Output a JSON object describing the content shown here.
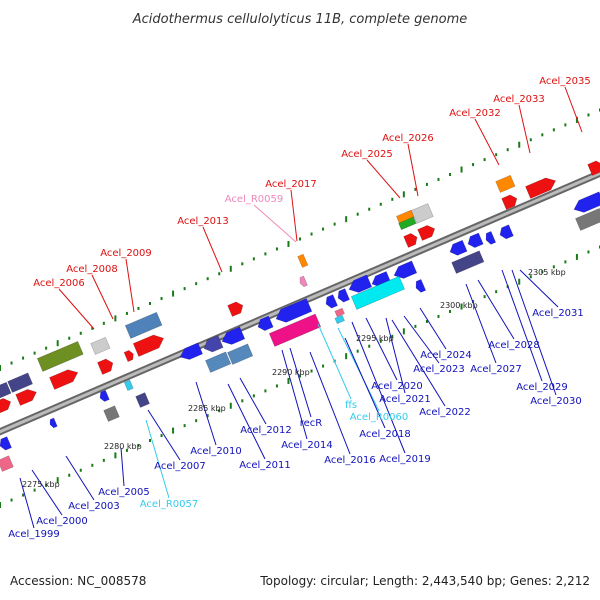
{
  "title": "Acidothermus cellulolyticus 11B, complete genome",
  "footer": {
    "accession": "Accession: NC_008578",
    "topology": "Topology: circular; Length: 2,443,540 bp; Genes: 2,212"
  },
  "colors": {
    "above_label": "#dd1111",
    "below_label": "#1111bb",
    "rna_label": "#33ccee",
    "pink_label": "#ee88bb",
    "backbone": "#888888"
  },
  "ticks": [
    "2275 kbp",
    "2280 kbp",
    "2285 kbp",
    "2290 kbp",
    "2295 kbp",
    "2300 kbp",
    "2305 kbp"
  ],
  "labels_above": [
    "Acel_2006",
    "Acel_2008",
    "Acel_2009",
    "Acel_2013",
    "Acel_R0059",
    "Acel_2017",
    "Acel_2025",
    "Acel_2026",
    "Acel_2032",
    "Acel_2033",
    "Acel_2035"
  ],
  "labels_below": [
    "Acel_1999",
    "Acel_2000",
    "Acel_2003",
    "Acel_2005",
    "Acel_R0057",
    "Acel_2007",
    "Acel_2010",
    "Acel_2011",
    "Acel_2012",
    "Acel_2014",
    "recR",
    "Acel_2016",
    "ffs",
    "Acel_R0060",
    "Acel_2018",
    "Acel_2019",
    "Acel_2020",
    "Acel_2021",
    "Acel_2022",
    "Acel_2023",
    "Acel_2024",
    "Acel_2027",
    "Acel_2028",
    "Acel_2029",
    "Acel_2030",
    "Acel_2031"
  ]
}
